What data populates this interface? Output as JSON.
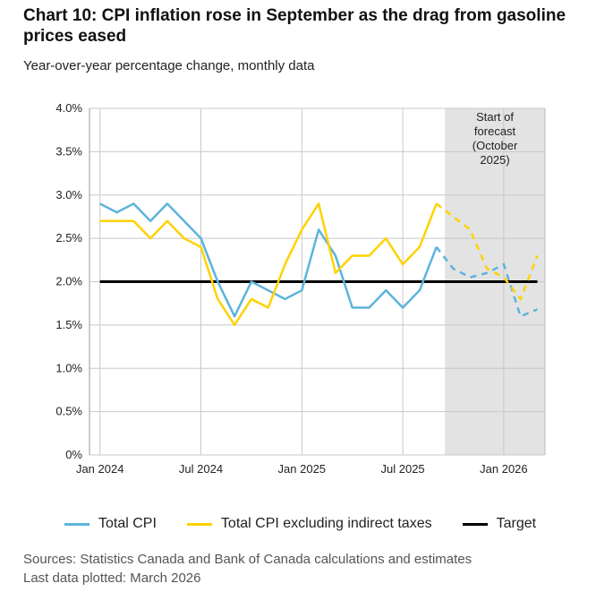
{
  "title": "Chart 10: CPI inflation rose in September as the drag from gasoline prices eased",
  "subtitle": "Year-over-year percentage change, monthly data",
  "sources": "Sources: Statistics Canada and Bank of Canada calculations and estimates",
  "last_data": "Last data plotted: March 2026",
  "colors": {
    "total_cpi": "#5bb4dc",
    "excl_taxes": "#ffd200",
    "target": "#000000",
    "forecast_bg": "#e3e3e3"
  },
  "chart_data": {
    "type": "line",
    "title": "Chart 10: CPI inflation rose in September as the drag from gasoline prices eased",
    "ylabel": "Year-over-year percentage change, monthly data",
    "ylim": [
      0,
      4.0
    ],
    "yticks": [
      "0%",
      "0.5%",
      "1.0%",
      "1.5%",
      "2.0%",
      "2.5%",
      "3.0%",
      "3.5%",
      "4.0%"
    ],
    "xticks": [
      {
        "label": "Jan 2024",
        "index": 0
      },
      {
        "label": "Jul 2024",
        "index": 6
      },
      {
        "label": "Jan 2025",
        "index": 12
      },
      {
        "label": "Jul 2025",
        "index": 18
      },
      {
        "label": "Jan 2026",
        "index": 24
      }
    ],
    "x_start": "Jan 2024",
    "x_end": "Mar 2026",
    "last_actual_index": 20,
    "forecast_annotation": "Start of forecast (October 2025)",
    "forecast_annotation_lines": [
      "Start of",
      "forecast",
      "(October",
      "2025)"
    ],
    "series": [
      {
        "name": "Total CPI",
        "color": "#5bb4dc",
        "values": [
          2.9,
          2.8,
          2.9,
          2.7,
          2.9,
          2.7,
          2.5,
          2.0,
          1.6,
          2.0,
          1.9,
          1.8,
          1.9,
          2.6,
          2.3,
          1.7,
          1.7,
          1.9,
          1.7,
          1.9,
          2.4,
          2.15,
          2.05,
          2.1,
          2.2,
          1.6,
          1.68
        ]
      },
      {
        "name": "Total CPI excluding indirect taxes",
        "color": "#ffd200",
        "values": [
          2.7,
          2.7,
          2.7,
          2.5,
          2.7,
          2.5,
          2.4,
          1.8,
          1.5,
          1.8,
          1.7,
          2.2,
          2.6,
          2.9,
          2.1,
          2.3,
          2.3,
          2.5,
          2.2,
          2.4,
          2.9,
          2.75,
          2.6,
          2.15,
          2.05,
          1.8,
          2.3
        ]
      },
      {
        "name": "Target",
        "color": "#000000",
        "constant": 2.0
      }
    ],
    "legend": "bottom",
    "grid": true
  }
}
